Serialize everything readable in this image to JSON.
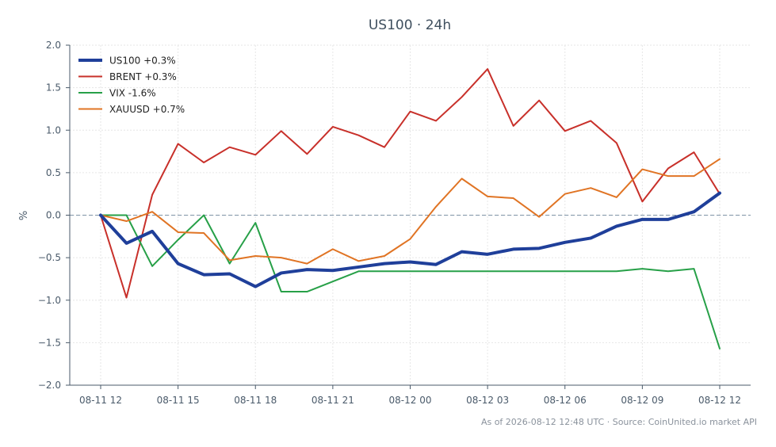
{
  "chart_data": {
    "type": "line",
    "title": "US100 · 24h",
    "xlabel": "",
    "ylabel": "%",
    "ylim": [
      -2.0,
      2.0
    ],
    "yticks": [
      "2.0",
      "1.5",
      "1.0",
      "0.5",
      "0.0",
      "−0.5",
      "−1.0",
      "−1.5",
      "−2.0"
    ],
    "ytick_values": [
      2.0,
      1.5,
      1.0,
      0.5,
      0.0,
      -0.5,
      -1.0,
      -1.5,
      -2.0
    ],
    "xticks": [
      "08-11 12",
      "08-11 15",
      "08-11 18",
      "08-11 21",
      "08-12 00",
      "08-12 03",
      "08-12 06",
      "08-12 09",
      "08-12 12"
    ],
    "xtick_hours": [
      0,
      3,
      6,
      9,
      12,
      15,
      18,
      21,
      24
    ],
    "x_hours": [
      0,
      1,
      2,
      3,
      4,
      5,
      6,
      7,
      8,
      9,
      10,
      11,
      12,
      13,
      14,
      15,
      16,
      17,
      18,
      19,
      20,
      21,
      22,
      23,
      24
    ],
    "grid": true,
    "zero_line": true,
    "legend_position": "top-left",
    "series": [
      {
        "name": "US100 +0.3%",
        "color": "#1f3f9a",
        "width": 4,
        "values": [
          0.0,
          -0.33,
          -0.19,
          -0.57,
          -0.7,
          -0.69,
          -0.84,
          -0.68,
          -0.64,
          -0.65,
          -0.61,
          -0.57,
          -0.55,
          -0.58,
          -0.43,
          -0.46,
          -0.4,
          -0.39,
          -0.32,
          -0.27,
          -0.13,
          -0.05,
          -0.05,
          0.04,
          0.26
        ]
      },
      {
        "name": "BRENT +0.3%",
        "color": "#c8302a",
        "width": 2,
        "values": [
          0.0,
          -0.97,
          0.24,
          0.84,
          0.62,
          0.8,
          0.71,
          0.99,
          0.72,
          1.04,
          0.94,
          0.8,
          1.22,
          1.11,
          1.39,
          1.72,
          1.05,
          1.35,
          0.99,
          1.11,
          0.85,
          0.16,
          0.55,
          0.74,
          0.25
        ]
      },
      {
        "name": "VIX -1.6%",
        "color": "#27a048",
        "width": 2,
        "values": [
          0.0,
          0.0,
          -0.6,
          -0.29,
          0.0,
          -0.57,
          -0.09,
          -0.9,
          -0.9,
          -0.78,
          -0.66,
          -0.66,
          -0.66,
          -0.66,
          -0.66,
          -0.66,
          -0.66,
          -0.66,
          -0.66,
          -0.66,
          -0.66,
          -0.63,
          -0.66,
          -0.63,
          -1.57
        ]
      },
      {
        "name": "XAUUSD +0.7%",
        "color": "#e07424",
        "width": 2,
        "values": [
          0.0,
          -0.07,
          0.04,
          -0.2,
          -0.21,
          -0.53,
          -0.48,
          -0.5,
          -0.57,
          -0.4,
          -0.54,
          -0.48,
          -0.28,
          0.1,
          0.43,
          0.22,
          0.2,
          -0.02,
          0.25,
          0.32,
          0.21,
          0.54,
          0.46,
          0.46,
          0.66
        ]
      }
    ]
  },
  "footer": {
    "text": "As of 2026-08-12 12:48 UTC · Source: CoinUnited.io market API"
  },
  "colors": {
    "axis": "#4a5a6a",
    "grid": "#e6e6e6",
    "zero_line": "#7f93a6",
    "title": "#3f4f5e"
  }
}
